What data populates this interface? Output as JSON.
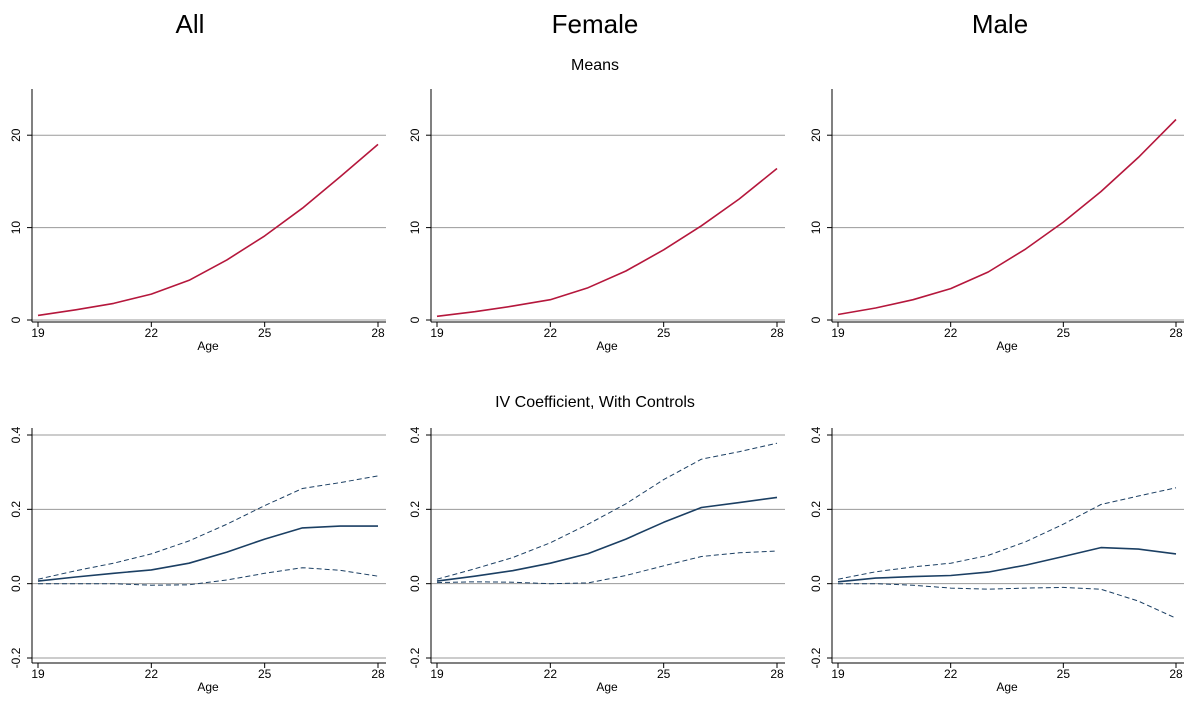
{
  "column_titles": [
    "All",
    "Female",
    "Male"
  ],
  "row_titles": [
    "Means",
    "IV Coefficient, With Controls"
  ],
  "colors": {
    "means_line": "#b5173c",
    "coef_line": "#1b3f63",
    "grid": "#9a9a9a",
    "axis": "#000000"
  },
  "chart_data": [
    {
      "type": "line",
      "title": "All",
      "subtitle": "Means",
      "xlabel": "Age",
      "ylabel": "",
      "xlim": [
        19,
        28
      ],
      "xticks": [
        19,
        22,
        25,
        28
      ],
      "ylim": [
        0,
        25
      ],
      "yticks": [
        0,
        10,
        20
      ],
      "ytick_labels": [
        "0",
        "10",
        "20"
      ],
      "grid": true,
      "x": [
        19,
        20,
        21,
        22,
        23,
        24,
        25,
        26,
        27,
        28
      ],
      "series": [
        {
          "role": "estimate",
          "values": [
            0.5,
            1.1,
            1.8,
            2.8,
            4.3,
            6.5,
            9.1,
            12.1,
            15.5,
            19.0
          ]
        }
      ]
    },
    {
      "type": "line",
      "title": "Female",
      "subtitle": "Means",
      "xlabel": "Age",
      "ylabel": "",
      "xlim": [
        19,
        28
      ],
      "xticks": [
        19,
        22,
        25,
        28
      ],
      "ylim": [
        0,
        25
      ],
      "yticks": [
        0,
        10,
        20
      ],
      "ytick_labels": [
        "0",
        "10",
        "20"
      ],
      "grid": true,
      "x": [
        19,
        20,
        21,
        22,
        23,
        24,
        25,
        26,
        27,
        28
      ],
      "series": [
        {
          "role": "estimate",
          "values": [
            0.4,
            0.9,
            1.5,
            2.2,
            3.5,
            5.3,
            7.6,
            10.2,
            13.1,
            16.4
          ]
        }
      ]
    },
    {
      "type": "line",
      "title": "Male",
      "subtitle": "Means",
      "xlabel": "Age",
      "ylabel": "",
      "xlim": [
        19,
        28
      ],
      "xticks": [
        19,
        22,
        25,
        28
      ],
      "ylim": [
        0,
        25
      ],
      "yticks": [
        0,
        10,
        20
      ],
      "ytick_labels": [
        "0",
        "10",
        "20"
      ],
      "grid": true,
      "x": [
        19,
        20,
        21,
        22,
        23,
        24,
        25,
        26,
        27,
        28
      ],
      "series": [
        {
          "role": "estimate",
          "values": [
            0.6,
            1.3,
            2.2,
            3.4,
            5.2,
            7.7,
            10.6,
            13.9,
            17.6,
            21.7
          ]
        }
      ]
    },
    {
      "type": "line",
      "title": "All",
      "subtitle": "IV Coefficient, With Controls",
      "xlabel": "Age",
      "ylabel": "",
      "xlim": [
        19,
        28
      ],
      "xticks": [
        19,
        22,
        25,
        28
      ],
      "ylim": [
        -0.2,
        0.4
      ],
      "yticks": [
        -0.2,
        0.0,
        0.2,
        0.4
      ],
      "ytick_labels": [
        "-0.2",
        "0.0",
        "0.2",
        "0.4"
      ],
      "grid": true,
      "x": [
        19,
        20,
        21,
        22,
        23,
        24,
        25,
        26,
        27,
        28
      ],
      "series": [
        {
          "role": "estimate",
          "values": [
            0.007,
            0.018,
            0.028,
            0.037,
            0.055,
            0.085,
            0.12,
            0.15,
            0.155,
            0.155
          ]
        },
        {
          "role": "upper_ci",
          "values": [
            0.012,
            0.035,
            0.055,
            0.08,
            0.115,
            0.16,
            0.21,
            0.256,
            0.272,
            0.29
          ]
        },
        {
          "role": "lower_ci",
          "values": [
            0.0,
            0.0,
            0.0,
            -0.004,
            -0.003,
            0.01,
            0.028,
            0.043,
            0.036,
            0.02
          ]
        }
      ]
    },
    {
      "type": "line",
      "title": "Female",
      "subtitle": "IV Coefficient, With Controls",
      "xlabel": "Age",
      "ylabel": "",
      "xlim": [
        19,
        28
      ],
      "xticks": [
        19,
        22,
        25,
        28
      ],
      "ylim": [
        -0.2,
        0.4
      ],
      "yticks": [
        -0.2,
        0.0,
        0.2,
        0.4
      ],
      "ytick_labels": [
        "-0.2",
        "0.0",
        "0.2",
        "0.4"
      ],
      "grid": true,
      "x": [
        19,
        20,
        21,
        22,
        23,
        24,
        25,
        26,
        27,
        28
      ],
      "series": [
        {
          "role": "estimate",
          "values": [
            0.007,
            0.02,
            0.035,
            0.055,
            0.081,
            0.12,
            0.165,
            0.205,
            0.218,
            0.232
          ]
        },
        {
          "role": "upper_ci",
          "values": [
            0.012,
            0.04,
            0.07,
            0.11,
            0.16,
            0.215,
            0.28,
            0.335,
            0.355,
            0.378
          ]
        },
        {
          "role": "lower_ci",
          "values": [
            0.003,
            0.005,
            0.004,
            0.0,
            0.002,
            0.022,
            0.048,
            0.073,
            0.083,
            0.088
          ]
        }
      ]
    },
    {
      "type": "line",
      "title": "Male",
      "subtitle": "IV Coefficient, With Controls",
      "xlabel": "Age",
      "ylabel": "",
      "xlim": [
        19,
        28
      ],
      "xticks": [
        19,
        22,
        25,
        28
      ],
      "ylim": [
        -0.2,
        0.4
      ],
      "yticks": [
        -0.2,
        0.0,
        0.2,
        0.4
      ],
      "ytick_labels": [
        "-0.2",
        "0.0",
        "0.2",
        "0.4"
      ],
      "grid": true,
      "x": [
        19,
        20,
        21,
        22,
        23,
        24,
        25,
        26,
        27,
        28
      ],
      "series": [
        {
          "role": "estimate",
          "values": [
            0.005,
            0.015,
            0.019,
            0.022,
            0.031,
            0.05,
            0.073,
            0.097,
            0.093,
            0.08
          ]
        },
        {
          "role": "upper_ci",
          "values": [
            0.012,
            0.032,
            0.045,
            0.055,
            0.076,
            0.113,
            0.16,
            0.213,
            0.236,
            0.258
          ]
        },
        {
          "role": "lower_ci",
          "values": [
            0.0,
            0.0,
            -0.004,
            -0.012,
            -0.015,
            -0.012,
            -0.01,
            -0.015,
            -0.047,
            -0.093
          ]
        }
      ]
    }
  ]
}
